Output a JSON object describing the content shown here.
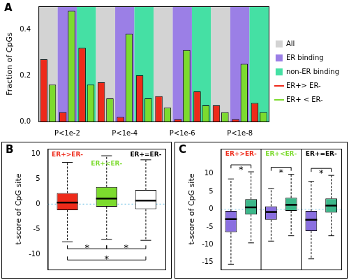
{
  "chart_data": [
    {
      "type": "bar",
      "panel_label": "A",
      "y_label": "Fraction of CpGs",
      "categories": [
        "P<1e-2",
        "P<1e-4",
        "P<1e-6",
        "P<1e-8"
      ],
      "groups": [
        {
          "name": "All",
          "color": "#d3d3d3"
        },
        {
          "name": "ER binding",
          "color": "#9b7fe6"
        },
        {
          "name": "non-ER binding",
          "color": "#45e0a4"
        }
      ],
      "series": [
        {
          "name": "ER+> ER-",
          "color": "#ee2a1a",
          "values": [
            [
              0.27,
              0.04,
              0.32
            ],
            [
              0.17,
              0.02,
              0.2
            ],
            [
              0.11,
              0.01,
              0.13
            ],
            [
              0.07,
              0.01,
              0.08
            ]
          ]
        },
        {
          "name": "ER+ < ER-",
          "color": "#7cdb2e",
          "values": [
            [
              0.16,
              0.48,
              0.16
            ],
            [
              0.1,
              0.38,
              0.1
            ],
            [
              0.06,
              0.31,
              0.07
            ],
            [
              0.04,
              0.25,
              0.04
            ]
          ]
        }
      ],
      "ylim": [
        0,
        0.5
      ],
      "yticks": [
        {
          "value": 0,
          "label": "0.0"
        },
        {
          "value": 0.2,
          "label": "0.2"
        },
        {
          "value": 0.4,
          "label": "0.4"
        }
      ],
      "grid": false,
      "legend": "right"
    },
    {
      "type": "boxplot",
      "panel_label": "B",
      "y_label": "t-score of CpG site",
      "boxes": [
        {
          "label": "ER+>ER-",
          "color": "#ee2a1a",
          "low": -7.5,
          "q1": -1.2,
          "median": 0.3,
          "q3": 2.2,
          "high": 8.3
        },
        {
          "label": "ER+<ER-",
          "color": "#7cdb2e",
          "low": -7.0,
          "q1": -0.5,
          "median": 1.1,
          "q3": 3.4,
          "high": 9.6
        },
        {
          "label": "ER+=ER-",
          "color": "#ffffff",
          "low": -7.2,
          "q1": -1.0,
          "median": 0.7,
          "q3": 2.8,
          "high": 8.8
        }
      ],
      "comparisons": [
        {
          "between": [
            "ER+>ER-",
            "ER+<ER-"
          ],
          "label": "*"
        },
        {
          "between": [
            "ER+<ER-",
            "ER+=ER-"
          ],
          "label": "*"
        },
        {
          "between": [
            "ER+>ER-",
            "ER+=ER-"
          ],
          "label": "*"
        }
      ],
      "reference_line": 0,
      "ylim": [
        -13,
        11
      ],
      "yticks": [
        -10,
        -5,
        0,
        5,
        10
      ],
      "grid": false,
      "tick_labels": "y"
    },
    {
      "type": "boxplot",
      "panel_label": "C",
      "y_label": "t-score of CpG site",
      "groups": [
        {
          "label": "ER+>ER-",
          "color": "#ee2a1a",
          "comparison": "*",
          "boxes": [
            {
              "color": "#8a6fe0",
              "low": -15.5,
              "q1": -6.5,
              "median": -2.8,
              "q3": -0.5,
              "high": 8.5
            },
            {
              "color": "#3cb88a",
              "low": -9.5,
              "q1": -1.5,
              "median": 0.5,
              "q3": 2.8,
              "high": 10.5
            }
          ]
        },
        {
          "label": "ER+<ER-",
          "color": "#7cdb2e",
          "comparison": "*",
          "boxes": [
            {
              "color": "#8a6fe0",
              "low": -9.0,
              "q1": -3.0,
              "median": -0.8,
              "q3": 0.8,
              "high": 5.8
            },
            {
              "color": "#3cb88a",
              "low": -7.5,
              "q1": -0.5,
              "median": 1.2,
              "q3": 3.2,
              "high": 9.8
            }
          ]
        },
        {
          "label": "ER+=ER-",
          "color": "#000000",
          "comparison": "*",
          "boxes": [
            {
              "color": "#8a6fe0",
              "low": -14.0,
              "q1": -6.2,
              "median": -3.0,
              "q3": -0.5,
              "high": 7.8
            },
            {
              "color": "#3cb88a",
              "low": -7.5,
              "q1": -1.0,
              "median": 1.0,
              "q3": 3.0,
              "high": 9.5
            }
          ]
        }
      ],
      "reference_line": 0,
      "ylim": [
        -17,
        17
      ],
      "yticks": [
        -15,
        -10,
        -5,
        0,
        5,
        10
      ],
      "grid": false,
      "tick_labels": "y"
    }
  ]
}
